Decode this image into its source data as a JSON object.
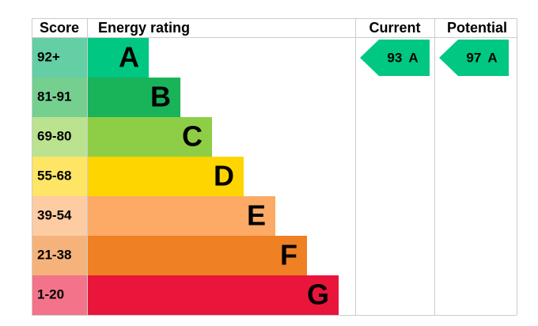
{
  "header": {
    "score": "Score",
    "rating": "Energy rating",
    "current": "Current",
    "potential": "Potential"
  },
  "bands": [
    {
      "score": "92+",
      "letter": "A",
      "color": "#00c781",
      "score_color": "#64cfa5"
    },
    {
      "score": "81-91",
      "letter": "B",
      "color": "#19b459",
      "score_color": "#75cf8f"
    },
    {
      "score": "69-80",
      "letter": "C",
      "color": "#8dce46",
      "score_color": "#bbe28f"
    },
    {
      "score": "55-68",
      "letter": "D",
      "color": "#ffd500",
      "score_color": "#ffe566"
    },
    {
      "score": "39-54",
      "letter": "E",
      "color": "#fcaa65",
      "score_color": "#fdcca3"
    },
    {
      "score": "21-38",
      "letter": "F",
      "color": "#ef8023",
      "score_color": "#f5b37b"
    },
    {
      "score": "1-20",
      "letter": "G",
      "color": "#e9153b",
      "score_color": "#f2738a"
    }
  ],
  "current": {
    "label": "93 A",
    "band": "A",
    "color": "#00c781"
  },
  "potential": {
    "label": "97 A",
    "band": "A",
    "color": "#00c781"
  }
}
